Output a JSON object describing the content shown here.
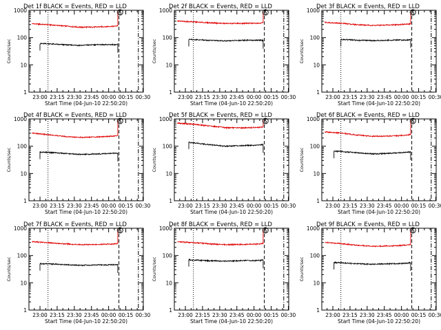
{
  "colors": {
    "events": "#000000",
    "lld": "#e00000",
    "axis": "#000000",
    "background": "#ffffff"
  },
  "chart_data": {
    "type": "line",
    "shared": {
      "xlabel": "Start Time (04-Jun-10 22:50:20)",
      "ylabel": "Counts/sec",
      "x_tick_labels": [
        "23:00",
        "23:15",
        "23:30",
        "23:45",
        "00:00",
        "00:15",
        "00:30"
      ],
      "x_ticks": [
        "23:00",
        "23:15",
        "23:30",
        "23:45",
        "00:00",
        "00:15",
        "00:30"
      ],
      "xlim": [
        "22:50:20",
        "00:30:20"
      ],
      "y_scale": "log",
      "ylim": [
        1,
        1000
      ],
      "y_tick_labels": [
        "1",
        "10",
        "100",
        "1000"
      ],
      "y_ticks": [
        1,
        10,
        100,
        1000
      ],
      "marker_label": "S",
      "marker_time": "00:10",
      "vertical_lines": [
        {
          "time": "23:07",
          "style": "dotted"
        },
        {
          "time": "00:09",
          "style": "dashed"
        },
        {
          "time": "00:26",
          "style": "dash-dot"
        }
      ],
      "grid": false
    },
    "panels": [
      {
        "title": "Det 1f BLACK = Events, RED = LLD",
        "series": [
          {
            "x": [
              "22:53",
              "23:05",
              "23:20",
              "23:35",
              "23:50",
              "00:05",
              "00:08"
            ],
            "values": [
              320,
              300,
              270,
              240,
              245,
              260,
              270
            ]
          },
          {
            "x": [
              "23:00",
              "23:05",
              "23:20",
              "23:35",
              "23:50",
              "00:05",
              "00:08"
            ],
            "values": [
              60,
              60,
              55,
              52,
              55,
              55,
              56
            ]
          }
        ]
      },
      {
        "title": "Det 2f BLACK = Events, RED = LLD",
        "series": [
          {
            "x": [
              "22:53",
              "23:05",
              "23:20",
              "23:35",
              "23:50",
              "00:05",
              "00:08"
            ],
            "values": [
              400,
              380,
              350,
              330,
              330,
              340,
              350
            ]
          },
          {
            "x": [
              "23:03",
              "23:05",
              "23:20",
              "23:35",
              "23:50",
              "00:05",
              "00:08"
            ],
            "values": [
              85,
              85,
              80,
              75,
              80,
              80,
              78
            ]
          }
        ]
      },
      {
        "title": "Det 3f BLACK = Events, RED = LLD",
        "series": [
          {
            "x": [
              "22:53",
              "23:05",
              "23:20",
              "23:35",
              "23:50",
              "00:05",
              "00:08"
            ],
            "values": [
              360,
              340,
              300,
              280,
              290,
              310,
              320
            ]
          },
          {
            "x": [
              "23:07",
              "23:10",
              "23:20",
              "23:35",
              "23:50",
              "00:05",
              "00:08"
            ],
            "values": [
              85,
              85,
              80,
              78,
              80,
              82,
              85
            ]
          }
        ]
      },
      {
        "title": "Det 4f BLACK = Events, RED = LLD",
        "series": [
          {
            "x": [
              "22:53",
              "23:05",
              "23:20",
              "23:35",
              "23:50",
              "00:05",
              "00:08"
            ],
            "values": [
              300,
              270,
              230,
              210,
              220,
              235,
              245
            ]
          },
          {
            "x": [
              "23:00",
              "23:05",
              "23:20",
              "23:35",
              "23:50",
              "00:05",
              "00:08"
            ],
            "values": [
              60,
              60,
              55,
              50,
              52,
              55,
              55
            ]
          }
        ]
      },
      {
        "title": "Det 5f BLACK = Events, RED = LLD",
        "series": [
          {
            "x": [
              "22:53",
              "23:05",
              "23:20",
              "23:35",
              "23:50",
              "00:05",
              "00:08"
            ],
            "values": [
              700,
              650,
              560,
              480,
              470,
              490,
              500
            ]
          },
          {
            "x": [
              "23:03",
              "23:05",
              "23:20",
              "23:35",
              "23:50",
              "00:05",
              "00:08"
            ],
            "values": [
              140,
              135,
              115,
              100,
              105,
              110,
              115
            ]
          }
        ]
      },
      {
        "title": "Det 6f BLACK = Events, RED = LLD",
        "series": [
          {
            "x": [
              "22:53",
              "23:05",
              "23:20",
              "23:35",
              "23:50",
              "00:05",
              "00:08"
            ],
            "values": [
              330,
              310,
              260,
              230,
              235,
              255,
              270
            ]
          },
          {
            "x": [
              "23:01",
              "23:05",
              "23:20",
              "23:35",
              "23:50",
              "00:05",
              "00:08"
            ],
            "values": [
              65,
              65,
              58,
              52,
              55,
              60,
              62
            ]
          }
        ]
      },
      {
        "title": "Det 7f BLACK = Events, RED = LLD",
        "series": [
          {
            "x": [
              "22:53",
              "23:05",
              "23:20",
              "23:35",
              "23:50",
              "00:05",
              "00:08"
            ],
            "values": [
              320,
              300,
              270,
              250,
              255,
              265,
              275
            ]
          },
          {
            "x": [
              "23:00",
              "23:05",
              "23:20",
              "23:35",
              "23:50",
              "00:05",
              "00:08"
            ],
            "values": [
              50,
              50,
              47,
              44,
              45,
              46,
              46
            ]
          }
        ]
      },
      {
        "title": "Det 8f BLACK = Events, RED = LLD",
        "series": [
          {
            "x": [
              "22:53",
              "23:05",
              "23:20",
              "23:35",
              "23:50",
              "00:05",
              "00:08"
            ],
            "values": [
              320,
              300,
              270,
              250,
              255,
              265,
              275
            ]
          },
          {
            "x": [
              "23:03",
              "23:05",
              "23:20",
              "23:35",
              "23:50",
              "00:05",
              "00:08"
            ],
            "values": [
              70,
              68,
              65,
              62,
              65,
              66,
              68
            ]
          }
        ]
      },
      {
        "title": "Det 9f BLACK = Events, RED = LLD",
        "series": [
          {
            "x": [
              "22:53",
              "23:05",
              "23:20",
              "23:35",
              "23:50",
              "00:05",
              "00:08"
            ],
            "values": [
              300,
              280,
              240,
              220,
              225,
              240,
              250
            ]
          },
          {
            "x": [
              "23:01",
              "23:05",
              "23:20",
              "23:35",
              "23:50",
              "00:05",
              "00:08"
            ],
            "values": [
              55,
              55,
              50,
              48,
              50,
              52,
              55
            ]
          }
        ]
      }
    ]
  }
}
